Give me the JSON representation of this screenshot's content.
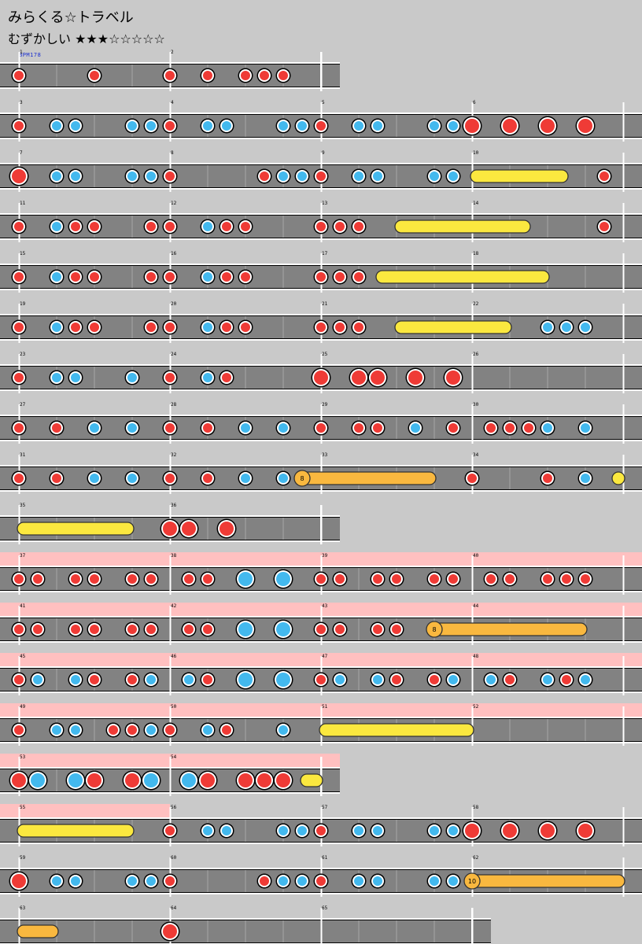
{
  "song_title": "みらくる☆トラベル",
  "difficulty_label": "むずかしい ★★★☆☆☆☆☆",
  "bpm_label": "BPM178",
  "colors": {
    "don": "#ef3b36",
    "ka": "#43b9ee",
    "drumroll": "#fbe83f",
    "balloon": "#f9b83f",
    "gogo": "#ffc0c0",
    "lane": "#828282",
    "background": "#c9c9c9"
  },
  "measures_per_row": 4,
  "rows": [
    {
      "start": 1,
      "count": 2,
      "notes": [
        [
          0,
          "d"
        ],
        [
          4,
          "d"
        ],
        [
          8,
          "d"
        ],
        [
          10,
          "d"
        ],
        [
          12,
          "d"
        ],
        [
          13,
          "d"
        ],
        [
          14,
          "d"
        ]
      ]
    },
    {
      "start": 3,
      "count": 4,
      "notes": [
        [
          0,
          "d"
        ],
        [
          2,
          "k"
        ],
        [
          3,
          "k"
        ],
        [
          6,
          "k"
        ],
        [
          7,
          "k"
        ],
        [
          8,
          "d"
        ],
        [
          10,
          "k"
        ],
        [
          11,
          "k"
        ],
        [
          14,
          "k"
        ],
        [
          15,
          "k"
        ],
        [
          16,
          "d"
        ],
        [
          18,
          "k"
        ],
        [
          19,
          "k"
        ],
        [
          22,
          "k"
        ],
        [
          23,
          "k"
        ],
        [
          24,
          "D"
        ],
        [
          26,
          "D"
        ],
        [
          28,
          "D"
        ],
        [
          30,
          "D"
        ]
      ]
    },
    {
      "start": 7,
      "count": 4,
      "notes": [
        [
          0,
          "D"
        ],
        [
          2,
          "k"
        ],
        [
          3,
          "k"
        ],
        [
          6,
          "k"
        ],
        [
          7,
          "k"
        ],
        [
          8,
          "d"
        ],
        [
          13,
          "d"
        ],
        [
          14,
          "k"
        ],
        [
          15,
          "k"
        ],
        [
          16,
          "d"
        ],
        [
          18,
          "k"
        ],
        [
          19,
          "k"
        ],
        [
          22,
          "k"
        ],
        [
          23,
          "k"
        ],
        [
          31,
          "d"
        ]
      ],
      "rolls": [
        [
          24,
          29,
          "roll"
        ]
      ]
    },
    {
      "start": 11,
      "count": 4,
      "notes": [
        [
          0,
          "d"
        ],
        [
          2,
          "k"
        ],
        [
          3,
          "d"
        ],
        [
          4,
          "d"
        ],
        [
          7,
          "d"
        ],
        [
          8,
          "d"
        ],
        [
          10,
          "k"
        ],
        [
          11,
          "d"
        ],
        [
          12,
          "d"
        ],
        [
          16,
          "d"
        ],
        [
          17,
          "d"
        ],
        [
          18,
          "d"
        ],
        [
          31,
          "d"
        ]
      ],
      "rolls": [
        [
          20,
          27,
          "roll"
        ]
      ]
    },
    {
      "start": 15,
      "count": 4,
      "notes": [
        [
          0,
          "d"
        ],
        [
          2,
          "k"
        ],
        [
          3,
          "d"
        ],
        [
          4,
          "d"
        ],
        [
          7,
          "d"
        ],
        [
          8,
          "d"
        ],
        [
          10,
          "k"
        ],
        [
          11,
          "d"
        ],
        [
          12,
          "d"
        ],
        [
          16,
          "d"
        ],
        [
          17,
          "d"
        ],
        [
          18,
          "d"
        ]
      ],
      "rolls": [
        [
          19,
          28,
          "roll"
        ]
      ]
    },
    {
      "start": 19,
      "count": 4,
      "notes": [
        [
          0,
          "d"
        ],
        [
          2,
          "k"
        ],
        [
          3,
          "d"
        ],
        [
          4,
          "d"
        ],
        [
          7,
          "d"
        ],
        [
          8,
          "d"
        ],
        [
          10,
          "k"
        ],
        [
          11,
          "d"
        ],
        [
          12,
          "d"
        ],
        [
          16,
          "d"
        ],
        [
          17,
          "d"
        ],
        [
          18,
          "d"
        ],
        [
          28,
          "k"
        ],
        [
          29,
          "k"
        ],
        [
          30,
          "k"
        ]
      ],
      "rolls": [
        [
          20,
          26,
          "roll"
        ]
      ]
    },
    {
      "start": 23,
      "count": 4,
      "notes": [
        [
          0,
          "d"
        ],
        [
          2,
          "k"
        ],
        [
          3,
          "k"
        ],
        [
          6,
          "k"
        ],
        [
          8,
          "d"
        ],
        [
          10,
          "k"
        ],
        [
          11,
          "d"
        ],
        [
          16,
          "D"
        ],
        [
          18,
          "D"
        ],
        [
          19,
          "D"
        ],
        [
          21,
          "D"
        ],
        [
          23,
          "D"
        ]
      ]
    },
    {
      "start": 27,
      "count": 4,
      "notes": [
        [
          0,
          "d"
        ],
        [
          2,
          "d"
        ],
        [
          4,
          "k"
        ],
        [
          6,
          "k"
        ],
        [
          8,
          "d"
        ],
        [
          10,
          "d"
        ],
        [
          12,
          "k"
        ],
        [
          14,
          "k"
        ],
        [
          16,
          "d"
        ],
        [
          18,
          "d"
        ],
        [
          19,
          "d"
        ],
        [
          21,
          "k"
        ],
        [
          23,
          "d"
        ],
        [
          25,
          "d"
        ],
        [
          26,
          "d"
        ],
        [
          27,
          "d"
        ],
        [
          28,
          "k"
        ],
        [
          30,
          "k"
        ]
      ]
    },
    {
      "start": 31,
      "count": 4,
      "notes": [
        [
          0,
          "d"
        ],
        [
          2,
          "d"
        ],
        [
          4,
          "k"
        ],
        [
          6,
          "k"
        ],
        [
          8,
          "d"
        ],
        [
          10,
          "d"
        ],
        [
          12,
          "k"
        ],
        [
          14,
          "k"
        ],
        [
          24,
          "d"
        ],
        [
          28,
          "d"
        ],
        [
          30,
          "k"
        ]
      ],
      "rolls": [
        [
          15,
          22,
          "balloon",
          "8"
        ],
        [
          31.5,
          32,
          "roll"
        ]
      ]
    },
    {
      "start": 35,
      "count": 2,
      "notes": [
        [
          8,
          "D"
        ],
        [
          9,
          "D"
        ],
        [
          11,
          "D"
        ]
      ],
      "rolls": [
        [
          0,
          6,
          "roll"
        ]
      ]
    },
    {
      "start": 37,
      "count": 4,
      "gogo": [
        0,
        4
      ],
      "notes": [
        [
          0,
          "d"
        ],
        [
          1,
          "d"
        ],
        [
          3,
          "d"
        ],
        [
          4,
          "d"
        ],
        [
          6,
          "d"
        ],
        [
          7,
          "d"
        ],
        [
          9,
          "d"
        ],
        [
          10,
          "d"
        ],
        [
          12,
          "K"
        ],
        [
          14,
          "K"
        ],
        [
          16,
          "d"
        ],
        [
          17,
          "d"
        ],
        [
          19,
          "d"
        ],
        [
          20,
          "d"
        ],
        [
          22,
          "d"
        ],
        [
          23,
          "d"
        ],
        [
          25,
          "d"
        ],
        [
          26,
          "d"
        ],
        [
          28,
          "d"
        ],
        [
          29,
          "d"
        ],
        [
          30,
          "d"
        ]
      ]
    },
    {
      "start": 41,
      "count": 4,
      "gogo": [
        0,
        4
      ],
      "notes": [
        [
          0,
          "d"
        ],
        [
          1,
          "d"
        ],
        [
          3,
          "d"
        ],
        [
          4,
          "d"
        ],
        [
          6,
          "d"
        ],
        [
          7,
          "d"
        ],
        [
          9,
          "d"
        ],
        [
          10,
          "d"
        ],
        [
          12,
          "K"
        ],
        [
          14,
          "K"
        ],
        [
          16,
          "d"
        ],
        [
          17,
          "d"
        ],
        [
          19,
          "d"
        ],
        [
          20,
          "d"
        ]
      ],
      "rolls": [
        [
          22,
          30,
          "balloon",
          "8"
        ]
      ]
    },
    {
      "start": 45,
      "count": 4,
      "gogo": [
        0,
        4
      ],
      "notes": [
        [
          0,
          "d"
        ],
        [
          1,
          "k"
        ],
        [
          3,
          "k"
        ],
        [
          4,
          "d"
        ],
        [
          6,
          "d"
        ],
        [
          7,
          "k"
        ],
        [
          9,
          "k"
        ],
        [
          10,
          "d"
        ],
        [
          12,
          "K"
        ],
        [
          14,
          "K"
        ],
        [
          16,
          "d"
        ],
        [
          17,
          "k"
        ],
        [
          19,
          "k"
        ],
        [
          20,
          "d"
        ],
        [
          22,
          "d"
        ],
        [
          23,
          "k"
        ],
        [
          25,
          "k"
        ],
        [
          26,
          "d"
        ],
        [
          28,
          "k"
        ],
        [
          29,
          "d"
        ],
        [
          30,
          "k"
        ]
      ]
    },
    {
      "start": 49,
      "count": 4,
      "gogo": [
        0,
        4
      ],
      "notes": [
        [
          0,
          "d"
        ],
        [
          2,
          "k"
        ],
        [
          3,
          "k"
        ],
        [
          5,
          "d"
        ],
        [
          6,
          "d"
        ],
        [
          7,
          "k"
        ],
        [
          8,
          "d"
        ],
        [
          10,
          "k"
        ],
        [
          11,
          "d"
        ],
        [
          14,
          "k"
        ]
      ],
      "rolls": [
        [
          16,
          24,
          "roll"
        ]
      ]
    },
    {
      "start": 53,
      "count": 2,
      "gogo": [
        0,
        2
      ],
      "notes": [
        [
          0,
          "D"
        ],
        [
          1,
          "K"
        ],
        [
          3,
          "K"
        ],
        [
          4,
          "D"
        ],
        [
          6,
          "D"
        ],
        [
          7,
          "K"
        ],
        [
          9,
          "K"
        ],
        [
          10,
          "D"
        ],
        [
          12,
          "D"
        ],
        [
          13,
          "D"
        ],
        [
          14,
          "D"
        ]
      ],
      "rolls": [
        [
          15,
          16,
          "roll"
        ]
      ]
    },
    {
      "start": 55,
      "count": 4,
      "gogo": [
        0,
        1
      ],
      "notes": [
        [
          8,
          "d"
        ],
        [
          10,
          "k"
        ],
        [
          11,
          "k"
        ],
        [
          14,
          "k"
        ],
        [
          15,
          "k"
        ],
        [
          16,
          "d"
        ],
        [
          18,
          "k"
        ],
        [
          19,
          "k"
        ],
        [
          22,
          "k"
        ],
        [
          23,
          "k"
        ],
        [
          24,
          "D"
        ],
        [
          26,
          "D"
        ],
        [
          28,
          "D"
        ],
        [
          30,
          "D"
        ]
      ],
      "rolls": [
        [
          0,
          6,
          "roll"
        ]
      ]
    },
    {
      "start": 59,
      "count": 4,
      "notes": [
        [
          0,
          "D"
        ],
        [
          2,
          "k"
        ],
        [
          3,
          "k"
        ],
        [
          6,
          "k"
        ],
        [
          7,
          "k"
        ],
        [
          8,
          "d"
        ],
        [
          13,
          "d"
        ],
        [
          14,
          "k"
        ],
        [
          15,
          "k"
        ],
        [
          16,
          "d"
        ],
        [
          18,
          "k"
        ],
        [
          19,
          "k"
        ],
        [
          22,
          "k"
        ],
        [
          23,
          "k"
        ]
      ],
      "rolls": [
        [
          24,
          32,
          "balloon",
          "10"
        ]
      ]
    },
    {
      "start": 63,
      "count": 3,
      "notes": [
        [
          8,
          "D"
        ]
      ],
      "rolls": [
        [
          0,
          2,
          "balloon-tail"
        ]
      ]
    }
  ]
}
